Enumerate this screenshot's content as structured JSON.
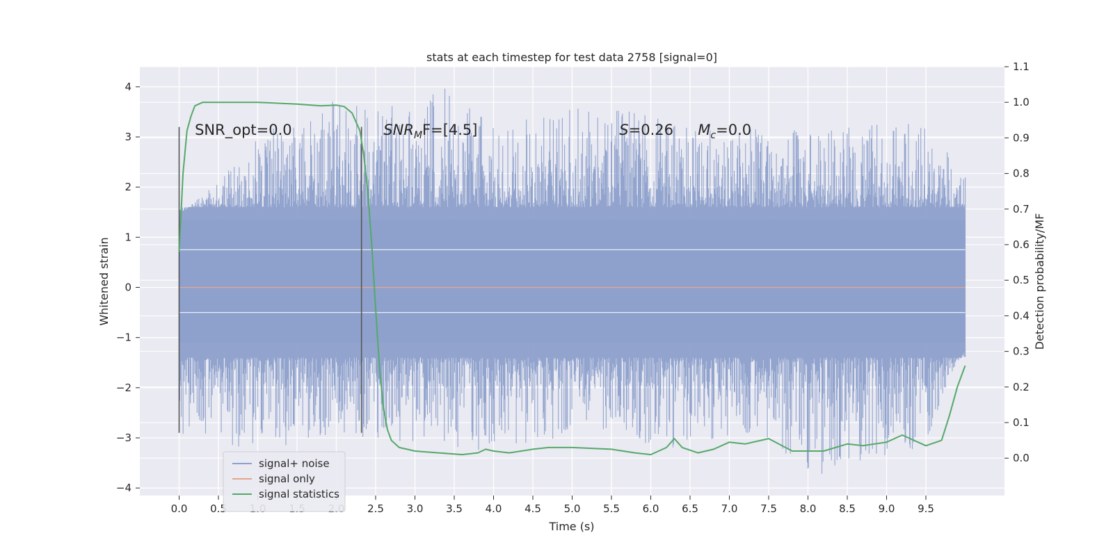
{
  "chart_data": {
    "type": "line",
    "title": "stats at each timestep for test data 2758 [signal=0]",
    "xlabel": "Time (s)",
    "ylabel": "Whitened strain",
    "y2label": "Detection probability/MF",
    "xlim": [
      -0.5,
      10.5
    ],
    "ylim": [
      -4.15,
      4.4
    ],
    "y2lim": [
      -0.105,
      1.1
    ],
    "x_ticks": [
      0.0,
      0.5,
      1.0,
      1.5,
      2.0,
      2.5,
      3.0,
      3.5,
      4.0,
      4.5,
      5.0,
      5.5,
      6.0,
      6.5,
      7.0,
      7.5,
      8.0,
      8.5,
      9.0,
      9.5
    ],
    "x_tick_labels": [
      "0.0",
      "0.5",
      "1.0",
      "1.5",
      "2.0",
      "2.5",
      "3.0",
      "3.5",
      "4.0",
      "4.5",
      "5.0",
      "5.5",
      "6.0",
      "6.5",
      "7.0",
      "7.5",
      "8.0",
      "8.5",
      "9.0",
      "9.5"
    ],
    "y_ticks": [
      4,
      3,
      2,
      1,
      0,
      -1,
      -2,
      -3,
      -4
    ],
    "y_tick_labels": [
      "4",
      "3",
      "2",
      "1",
      "0",
      "−1",
      "−2",
      "−3",
      "−4"
    ],
    "y2_ticks": [
      1.1,
      1.0,
      0.9,
      0.8,
      0.7,
      0.6,
      0.5,
      0.4,
      0.3,
      0.2,
      0.1,
      0.0
    ],
    "y2_tick_labels": [
      "1.1",
      "1.0",
      "0.9",
      "0.8",
      "0.7",
      "0.6",
      "0.5",
      "0.4",
      "0.3",
      "0.2",
      "0.1",
      "0.0"
    ],
    "grid": true,
    "legend_position": "lower-left",
    "series": [
      {
        "name": "signal+ noise",
        "axis": "left",
        "color": "#8da0cb",
        "description_range": [
          -3.8,
          4.05
        ],
        "x_range": [
          0.0,
          10.0
        ],
        "values_note_points": {
          "x": [
            0.0,
            1.0,
            2.0,
            2.6,
            3.4,
            4.0,
            5.5,
            6.5,
            7.5,
            8.0,
            9.5,
            10.0
          ],
          "envelope_max": [
            1.4,
            3.0,
            3.85,
            3.55,
            4.05,
            3.2,
            3.75,
            3.2,
            3.2,
            3.1,
            3.35,
            2.2
          ],
          "envelope_min": [
            -2.9,
            -3.3,
            -2.9,
            -3.1,
            -3.4,
            -3.2,
            -3.0,
            -3.25,
            -3.0,
            -3.8,
            -3.15,
            -1.2
          ]
        }
      },
      {
        "name": "signal only",
        "axis": "left",
        "color": "#e5a58c",
        "x": [
          0.0,
          10.0
        ],
        "y": [
          0.0,
          0.0
        ]
      },
      {
        "name": "signal statistics",
        "axis": "right",
        "color": "#55a868",
        "x": [
          0.0,
          0.05,
          0.1,
          0.15,
          0.2,
          0.3,
          0.5,
          1.0,
          1.5,
          1.8,
          2.0,
          2.1,
          2.2,
          2.3,
          2.35,
          2.4,
          2.45,
          2.5,
          2.55,
          2.6,
          2.65,
          2.7,
          2.8,
          2.9,
          3.0,
          3.3,
          3.6,
          3.8,
          3.9,
          4.0,
          4.2,
          4.5,
          4.7,
          5.0,
          5.5,
          5.8,
          6.0,
          6.2,
          6.3,
          6.4,
          6.6,
          6.8,
          7.0,
          7.2,
          7.5,
          7.8,
          8.2,
          8.5,
          8.7,
          9.0,
          9.2,
          9.5,
          9.7,
          9.8,
          9.9,
          10.0
        ],
        "y": [
          0.58,
          0.8,
          0.92,
          0.96,
          0.99,
          1.0,
          1.0,
          1.0,
          0.995,
          0.99,
          0.992,
          0.988,
          0.97,
          0.92,
          0.85,
          0.75,
          0.6,
          0.42,
          0.25,
          0.14,
          0.08,
          0.05,
          0.03,
          0.025,
          0.02,
          0.015,
          0.01,
          0.015,
          0.025,
          0.02,
          0.015,
          0.025,
          0.03,
          0.03,
          0.025,
          0.015,
          0.01,
          0.03,
          0.055,
          0.03,
          0.015,
          0.025,
          0.045,
          0.04,
          0.055,
          0.02,
          0.02,
          0.04,
          0.035,
          0.045,
          0.065,
          0.035,
          0.05,
          0.12,
          0.2,
          0.26
        ]
      }
    ],
    "vertical_lines": [
      {
        "x": 0.0,
        "ymin": -2.9,
        "ymax": 3.2,
        "color": "#555555"
      },
      {
        "x": 2.32,
        "ymin": -2.9,
        "ymax": 3.2,
        "color": "#555555"
      }
    ],
    "annotations": [
      {
        "text": "SNR_opt=0.0",
        "x": 0.2,
        "y": 3.15
      },
      {
        "text_main": "SNR",
        "text_sub": "M",
        "text_after": "F=[4.5]",
        "x": 2.6,
        "y": 3.15
      },
      {
        "text_main": "S",
        "text_after": "=0.26",
        "x": 5.6,
        "y": 3.15
      },
      {
        "text_main": "M",
        "text_sub": "c",
        "text_after": "=0.0",
        "x": 6.6,
        "y": 3.15
      }
    ],
    "legend": [
      {
        "label": "signal+ noise",
        "color": "#8da0cb"
      },
      {
        "label": "signal only",
        "color": "#e5a58c"
      },
      {
        "label": "signal statistics",
        "color": "#55a868"
      }
    ]
  }
}
